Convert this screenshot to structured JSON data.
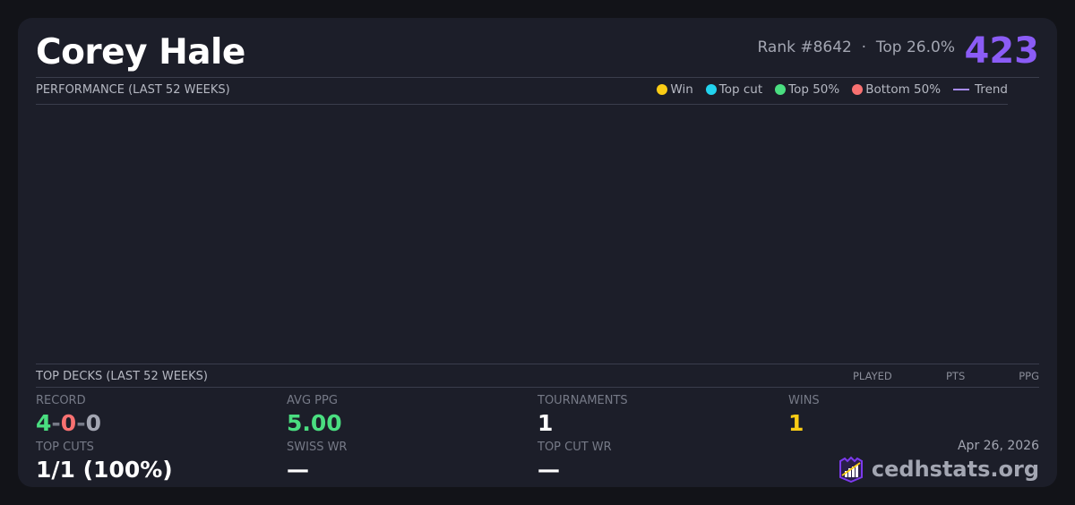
{
  "player": {
    "name": "Corey Hale",
    "rank": "Rank #8642",
    "separator": "·",
    "top": "Top 26.0%",
    "score": "423"
  },
  "performance": {
    "title": "PERFORMANCE (LAST 52 WEEKS)",
    "legend": [
      {
        "label": "Win",
        "color": "#facc15"
      },
      {
        "label": "Top cut",
        "color": "#22d3ee"
      },
      {
        "label": "Top 50%",
        "color": "#4ade80"
      },
      {
        "label": "Bottom 50%",
        "color": "#f87171"
      },
      {
        "label": "Trend",
        "color": "#a78bfa"
      }
    ]
  },
  "decks": {
    "title": "TOP DECKS (LAST 52 WEEKS)",
    "columns": [
      "PLAYED",
      "PTS",
      "PPG"
    ]
  },
  "stats": {
    "record_label": "RECORD",
    "record": {
      "w": "4",
      "sep": "-",
      "l": "0",
      "d": "0"
    },
    "avg_ppg_label": "AVG PPG",
    "avg_ppg": "5.00",
    "tournaments_label": "TOURNAMENTS",
    "tournaments": "1",
    "wins_label": "WINS",
    "wins": "1",
    "top_cuts_label": "TOP CUTS",
    "top_cuts": "1/1 (100%)",
    "swiss_wr_label": "SWISS WR",
    "swiss_wr": "—",
    "top_cut_wr_label": "TOP CUT WR",
    "top_cut_wr": "—"
  },
  "footer": {
    "date": "Apr 26, 2026",
    "brand": "cedhstats.org"
  },
  "colors": {
    "accent": "#8b5cf6",
    "green": "#4ade80",
    "red": "#f87171",
    "gold": "#facc15"
  }
}
